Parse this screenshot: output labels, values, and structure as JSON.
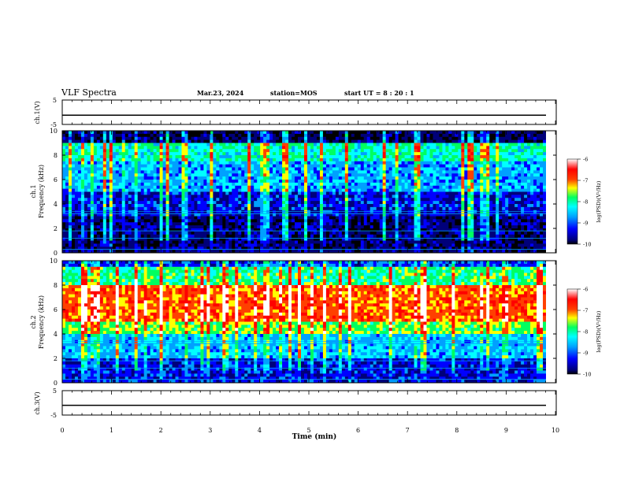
{
  "header": {
    "title": "VLF Spectra",
    "date": "Mar.23, 2024",
    "station": "station=MOS",
    "start_ut": "start  UT  =   8  : 20 : 1"
  },
  "colors": {
    "background": "#000000",
    "colormap": [
      "#000000",
      "#00007a",
      "#0000ff",
      "#00a0ff",
      "#00ffff",
      "#00ff60",
      "#ffff00",
      "#ff4000",
      "#ff0000",
      "#ffffff"
    ]
  },
  "chart_data": [
    {
      "id": "ch1-voltage",
      "type": "line",
      "ylabel": "ch.1(V)",
      "ylim": [
        -5,
        5
      ],
      "y_tick_labels": [
        "5",
        "-5"
      ],
      "xlim": [
        0,
        10
      ],
      "description_values": {
        "level": -1.2
      }
    },
    {
      "id": "ch1-spectrogram",
      "type": "heatmap",
      "ylabel": "ch.1\nFrequency (kHz)",
      "ylabel_line1": "ch.1",
      "ylabel_line2": "Frequency (kHz)",
      "ylim": [
        0,
        10
      ],
      "y_ticks": [
        0,
        2,
        4,
        6,
        8,
        10
      ],
      "y_tick_labels": [
        "0",
        "2",
        "4",
        "6",
        "8",
        "10"
      ],
      "xlim": [
        0,
        10
      ],
      "colorbar": {
        "label": "log(PSD)(V²/Hz)",
        "range": [
          -10,
          -6
        ],
        "tick_labels": [
          "-6",
          "-7",
          "-8",
          "-9",
          "-10"
        ]
      },
      "band_profile": [
        {
          "f_min": 0,
          "f_max": 3,
          "log_psd": -9.6
        },
        {
          "f_min": 3,
          "f_max": 5,
          "log_psd": -9.2
        },
        {
          "f_min": 5,
          "f_max": 7.5,
          "log_psd": -8.6
        },
        {
          "f_min": 7.5,
          "f_max": 9,
          "log_psd": -8.1
        },
        {
          "f_min": 9,
          "f_max": 10,
          "log_psd": -9.7
        }
      ]
    },
    {
      "id": "ch2-spectrogram",
      "type": "heatmap",
      "ylabel": "ch.2\nFrequency (kHz)",
      "ylabel_line1": "ch.2",
      "ylabel_line2": "Frequency (kHz)",
      "ylim": [
        0,
        10
      ],
      "y_ticks": [
        0,
        2,
        4,
        6,
        8,
        10
      ],
      "y_tick_labels": [
        "0",
        "2",
        "4",
        "6",
        "8",
        "10"
      ],
      "xlim": [
        0,
        10
      ],
      "colorbar": {
        "label": "log(PSD)(V²/Hz)",
        "range": [
          -10,
          -6
        ],
        "tick_labels": [
          "-6",
          "-7",
          "-8",
          "-9",
          "-10"
        ]
      },
      "band_profile": [
        {
          "f_min": 0,
          "f_max": 2,
          "log_psd": -9.2
        },
        {
          "f_min": 2,
          "f_max": 4,
          "log_psd": -8.5
        },
        {
          "f_min": 4,
          "f_max": 5,
          "log_psd": -7.6
        },
        {
          "f_min": 5,
          "f_max": 8,
          "log_psd": -6.9
        },
        {
          "f_min": 8,
          "f_max": 9.5,
          "log_psd": -7.9
        },
        {
          "f_min": 9.5,
          "f_max": 10,
          "log_psd": -9.0
        }
      ]
    },
    {
      "id": "ch3-voltage",
      "type": "line",
      "ylabel": "ch.3(V)",
      "ylim": [
        -5,
        5
      ],
      "y_tick_labels": [
        "5",
        "-5"
      ],
      "xlim": [
        0,
        10
      ],
      "description_values": {
        "level": -1.0
      }
    }
  ],
  "x_axis": {
    "label": "Time (min)",
    "range": [
      0,
      10
    ],
    "tick_labels": [
      "0",
      "1",
      "2",
      "3",
      "4",
      "5",
      "6",
      "7",
      "8",
      "9",
      "10"
    ]
  }
}
